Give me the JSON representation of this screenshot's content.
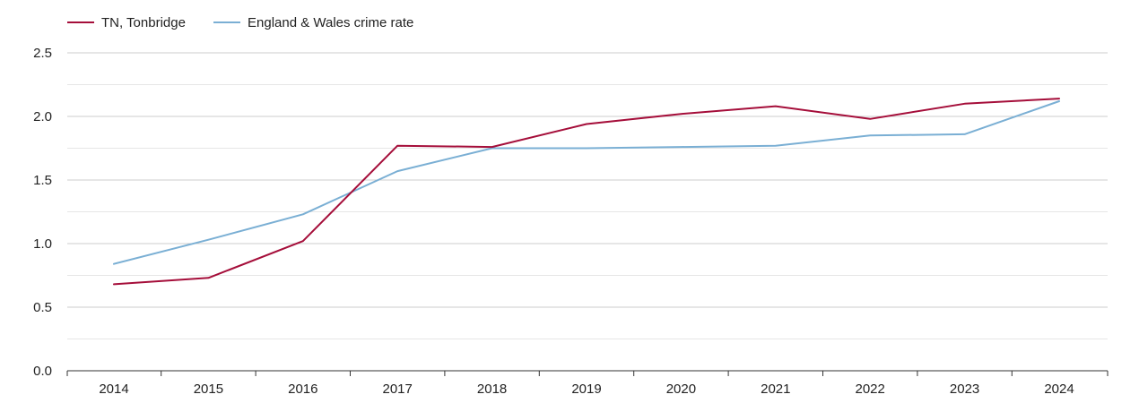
{
  "chart_data": {
    "type": "line",
    "title": "",
    "xlabel": "",
    "ylabel": "",
    "categories": [
      "2014",
      "2015",
      "2016",
      "2017",
      "2018",
      "2019",
      "2020",
      "2021",
      "2022",
      "2023",
      "2024"
    ],
    "y_ticks": [
      "0.0",
      "0.5",
      "1.0",
      "1.5",
      "2.0",
      "2.5"
    ],
    "ylim": [
      0,
      2.5
    ],
    "grid": true,
    "legend_position": "top-left",
    "series": [
      {
        "name": "TN, Tonbridge",
        "color": "#a50e3a",
        "values": [
          0.68,
          0.73,
          1.02,
          1.77,
          1.76,
          1.94,
          2.02,
          2.08,
          1.98,
          2.1,
          2.14
        ]
      },
      {
        "name": "England & Wales crime rate",
        "color": "#7aafd4",
        "values": [
          0.84,
          1.03,
          1.23,
          1.57,
          1.75,
          1.75,
          1.76,
          1.77,
          1.85,
          1.86,
          2.12
        ]
      }
    ]
  }
}
